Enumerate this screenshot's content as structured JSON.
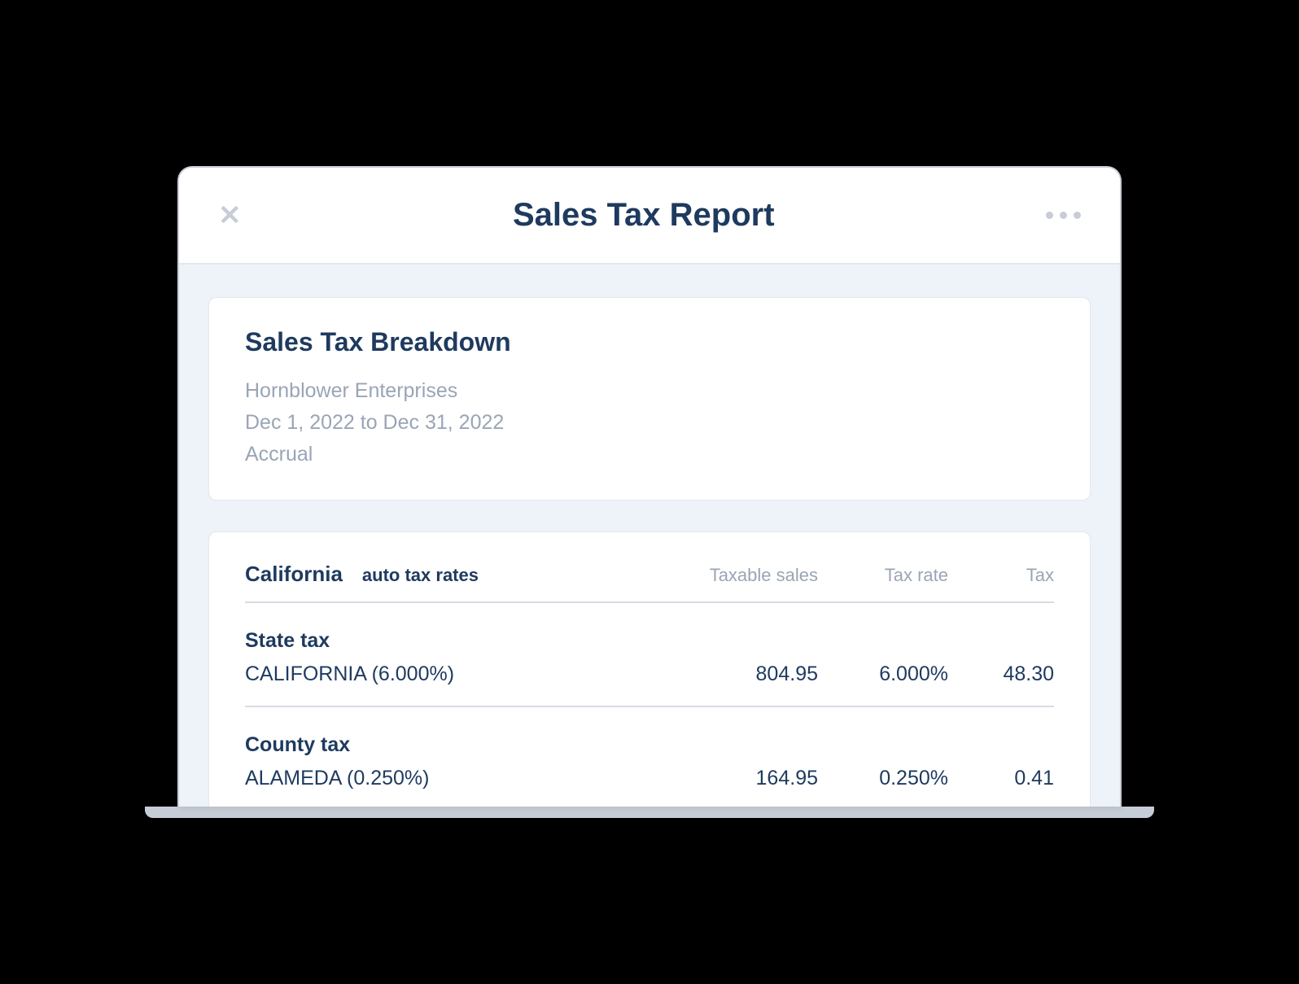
{
  "header": {
    "title": "Sales Tax Report"
  },
  "breakdown": {
    "title": "Sales Tax Breakdown",
    "company": "Hornblower Enterprises",
    "date_range": "Dec 1, 2022 to Dec 31, 2022",
    "basis": "Accrual"
  },
  "table": {
    "region": "California",
    "rates_note": "auto tax rates",
    "columns": {
      "taxable_sales": "Taxable sales",
      "tax_rate": "Tax rate",
      "tax": "Tax"
    },
    "groups": [
      {
        "label": "State tax",
        "rows": [
          {
            "name": "CALIFORNIA (6.000%)",
            "taxable_sales": "804.95",
            "tax_rate": "6.000%",
            "tax": "48.30"
          }
        ]
      },
      {
        "label": "County tax",
        "rows": [
          {
            "name": "ALAMEDA (0.250%)",
            "taxable_sales": "164.95",
            "tax_rate": "0.250%",
            "tax": "0.41"
          }
        ]
      }
    ]
  },
  "colors": {
    "text_dark": "#1e3a5f",
    "text_muted": "#9aa5b5",
    "border": "#e4e7ec",
    "divider": "#d6dbe3",
    "content_bg": "#eef2f9",
    "card_bg": "#ffffff",
    "frame_border": "#c7cdd6",
    "page_bg": "#000000"
  }
}
